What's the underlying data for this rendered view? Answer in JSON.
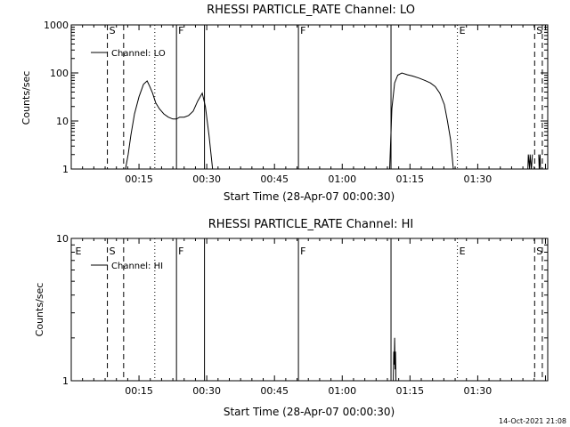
{
  "footer": {
    "timestamp": "14-Oct-2021 21:08"
  },
  "chart_data": [
    {
      "type": "line",
      "title": "RHESSI PARTICLE_RATE Channel: LO",
      "xlabel": "Start Time (28-Apr-07 00:00:30)",
      "ylabel": "Counts/sec",
      "yscale": "log",
      "ylim": [
        1,
        1000
      ],
      "xlim_min": [
        0,
        105.5
      ],
      "x_ticks": [
        {
          "t": 15,
          "label": "00:15"
        },
        {
          "t": 30,
          "label": "00:30"
        },
        {
          "t": 45,
          "label": "00:45"
        },
        {
          "t": 60,
          "label": "01:00"
        },
        {
          "t": 75,
          "label": "01:15"
        },
        {
          "t": 90,
          "label": "01:30"
        }
      ],
      "y_ticks": [
        {
          "v": 1,
          "label": "1"
        },
        {
          "v": 10,
          "label": "10"
        },
        {
          "v": 100,
          "label": "100"
        },
        {
          "v": 1000,
          "label": "1000"
        }
      ],
      "legend": {
        "label": "Channel: LO",
        "position": "top-left"
      },
      "markers": [
        {
          "t": 8,
          "style": "dashed",
          "label": "S"
        },
        {
          "t": 11.6,
          "style": "dashed",
          "label": ""
        },
        {
          "t": 18.5,
          "style": "dotted",
          "label": ""
        },
        {
          "t": 23.3,
          "style": "solid",
          "label": "F"
        },
        {
          "t": 29.5,
          "style": "solid",
          "label": ""
        },
        {
          "t": 50.3,
          "style": "solid",
          "label": "F"
        },
        {
          "t": 70.8,
          "style": "solid",
          "label": ""
        },
        {
          "t": 85.5,
          "style": "dotted",
          "label": "E"
        },
        {
          "t": 102.6,
          "style": "dashed",
          "label": "S"
        },
        {
          "t": 104.3,
          "style": "dashed",
          "label": ""
        }
      ],
      "series": [
        {
          "name": "Channel: LO",
          "x": [
            12,
            12.6,
            13.2,
            14,
            15,
            16,
            16.8,
            17.4,
            18,
            18.7,
            19.5,
            20.5,
            21.5,
            22.5,
            23.3,
            24,
            25,
            26,
            27,
            28,
            29,
            29.7,
            30.5,
            31.3
          ],
          "y": [
            1,
            2,
            5,
            14,
            32,
            58,
            68,
            52,
            38,
            24,
            18,
            14,
            12,
            11,
            11,
            12,
            12,
            13,
            16,
            26,
            38,
            20,
            5,
            1
          ]
        },
        {
          "name": "Channel: LO",
          "x": [
            70.5,
            71,
            71.6,
            72.3,
            73.2,
            74.4,
            75.6,
            77,
            78.3,
            79.5,
            80.6,
            81.6,
            82.6,
            83.3,
            84,
            84.6
          ],
          "y": [
            1,
            18,
            62,
            90,
            100,
            92,
            86,
            78,
            70,
            62,
            52,
            38,
            22,
            10,
            4,
            1
          ]
        },
        {
          "name": "Channel: LO",
          "x": [
            101.1,
            101.2,
            101.5,
            101.6,
            101.9,
            102.1
          ],
          "y": [
            1,
            2,
            1,
            2,
            1,
            2
          ]
        },
        {
          "name": "Channel: LO",
          "x": [
            103.5,
            103.6,
            103.8,
            103.9
          ],
          "y": [
            2,
            1,
            2,
            1
          ]
        }
      ]
    },
    {
      "type": "line",
      "title": "RHESSI PARTICLE_RATE Channel: HI",
      "xlabel": "Start Time (28-Apr-07 00:00:30)",
      "ylabel": "Counts/sec",
      "yscale": "log",
      "ylim": [
        1,
        10
      ],
      "xlim_min": [
        0,
        105.5
      ],
      "x_ticks": [
        {
          "t": 15,
          "label": "00:15"
        },
        {
          "t": 30,
          "label": "00:30"
        },
        {
          "t": 45,
          "label": "00:45"
        },
        {
          "t": 60,
          "label": "01:00"
        },
        {
          "t": 75,
          "label": "01:15"
        },
        {
          "t": 90,
          "label": "01:30"
        }
      ],
      "y_ticks": [
        {
          "v": 1,
          "label": "1"
        },
        {
          "v": 10,
          "label": "10"
        }
      ],
      "legend": {
        "label": "Channel: HI",
        "position": "top-left"
      },
      "markers": [
        {
          "t": 0.5,
          "style": "none",
          "label": "E"
        },
        {
          "t": 8,
          "style": "dashed",
          "label": "S"
        },
        {
          "t": 11.6,
          "style": "dashed",
          "label": ""
        },
        {
          "t": 18.5,
          "style": "dotted",
          "label": ""
        },
        {
          "t": 23.3,
          "style": "solid",
          "label": "F"
        },
        {
          "t": 29.5,
          "style": "solid",
          "label": ""
        },
        {
          "t": 50.3,
          "style": "solid",
          "label": "F"
        },
        {
          "t": 70.8,
          "style": "solid",
          "label": ""
        },
        {
          "t": 85.5,
          "style": "dotted",
          "label": "E"
        },
        {
          "t": 102.6,
          "style": "dashed",
          "label": "S"
        },
        {
          "t": 104.3,
          "style": "dashed",
          "label": ""
        }
      ],
      "series": [
        {
          "name": "Channel: HI",
          "x": [
            71.3,
            71.4,
            71.5,
            71.6,
            71.7,
            71.8,
            71.9
          ],
          "y": [
            1,
            1.6,
            1.3,
            2,
            1.2,
            1.6,
            1
          ]
        }
      ]
    }
  ]
}
